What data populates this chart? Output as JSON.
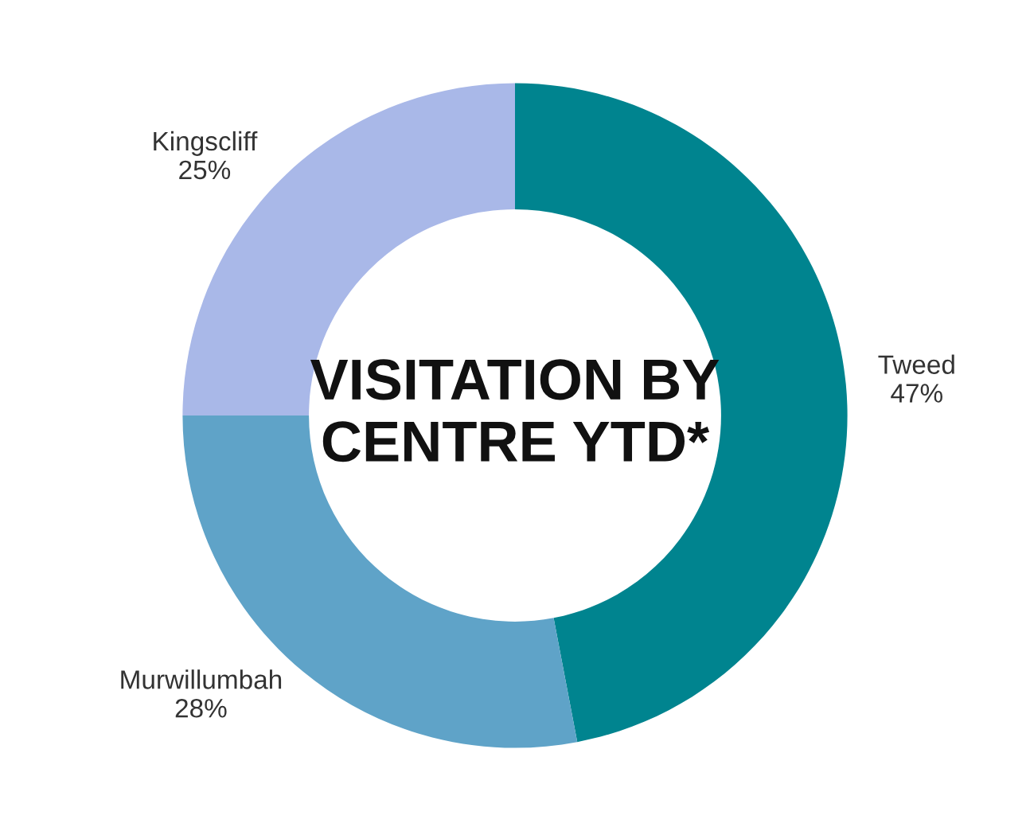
{
  "chart_data": {
    "type": "donut",
    "title": "VISITATION BY\nCENTRE YTD*",
    "categories": [
      "Tweed",
      "Murwillumbah",
      "Kingscliff"
    ],
    "values": [
      47,
      28,
      25
    ],
    "colors": [
      "#00848f",
      "#5fa3c8",
      "#a9b8e8"
    ],
    "value_labels": [
      "47%",
      "28%",
      "25%"
    ]
  }
}
